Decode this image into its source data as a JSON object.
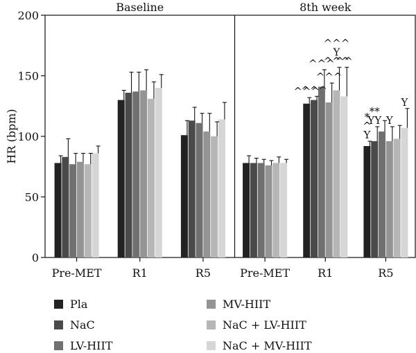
{
  "chart_data": {
    "type": "bar",
    "ylabel": "HR (bpm)",
    "ylim": [
      0,
      200
    ],
    "yticks": [
      0,
      50,
      100,
      150,
      200
    ],
    "panels": [
      {
        "title": "Baseline",
        "categories": [
          "Pre-MET",
          "R1",
          "R5"
        ],
        "values": [
          [
            78,
            83,
            77,
            79,
            77,
            86
          ],
          [
            130,
            136,
            137,
            138,
            131,
            140
          ],
          [
            101,
            113,
            111,
            104,
            100,
            114
          ]
        ],
        "errors": [
          [
            6,
            15,
            9,
            7,
            9,
            6
          ],
          [
            8,
            17,
            16,
            17,
            14,
            11
          ],
          [
            12,
            11,
            8,
            15,
            12,
            14
          ]
        ],
        "annotations": []
      },
      {
        "title": "8th week",
        "categories": [
          "Pre-MET",
          "R1",
          "R5"
        ],
        "values": [
          [
            78,
            78,
            78,
            76,
            78,
            78
          ],
          [
            127,
            130,
            141,
            128,
            138,
            133
          ],
          [
            92,
            96,
            104,
            96,
            98,
            107
          ]
        ],
        "errors": [
          [
            6,
            4,
            3,
            4,
            5,
            3
          ],
          [
            5,
            3,
            14,
            16,
            19,
            24
          ],
          [
            4,
            12,
            9,
            12,
            11,
            16
          ]
        ],
        "annotations": [
          {
            "group": 1,
            "bar": 0,
            "lines": [
              "^^^"
            ]
          },
          {
            "group": 1,
            "bar": 1,
            "lines": [
              "^^^"
            ]
          },
          {
            "group": 1,
            "bar": 2,
            "lines": [
              "^^^"
            ]
          },
          {
            "group": 1,
            "bar": 3,
            "lines": [
              "^^^"
            ]
          },
          {
            "group": 1,
            "bar": 4,
            "lines": [
              "^^^",
              "Y",
              "^^^"
            ]
          },
          {
            "group": 1,
            "bar": 5,
            "lines": [
              "^^"
            ]
          },
          {
            "group": 2,
            "bar": 0,
            "lines": [
              "*",
              "^",
              "Y"
            ]
          },
          {
            "group": 2,
            "bar": 1,
            "lines": [
              "**",
              "YY"
            ]
          },
          {
            "group": 2,
            "bar": 3,
            "lines": [
              "Y"
            ]
          },
          {
            "group": 2,
            "bar": 5,
            "lines": [
              "Y"
            ]
          }
        ]
      }
    ],
    "series": [
      {
        "name": "Pla",
        "color": "#222222"
      },
      {
        "name": "NaC",
        "color": "#4a4a4a"
      },
      {
        "name": "LV-HIIT",
        "color": "#707070"
      },
      {
        "name": "MV-HIIT",
        "color": "#949494"
      },
      {
        "name": "NaC + LV-HIIT",
        "color": "#b6b6b6"
      },
      {
        "name": "NaC + MV-HIIT",
        "color": "#d6d6d6"
      }
    ]
  }
}
